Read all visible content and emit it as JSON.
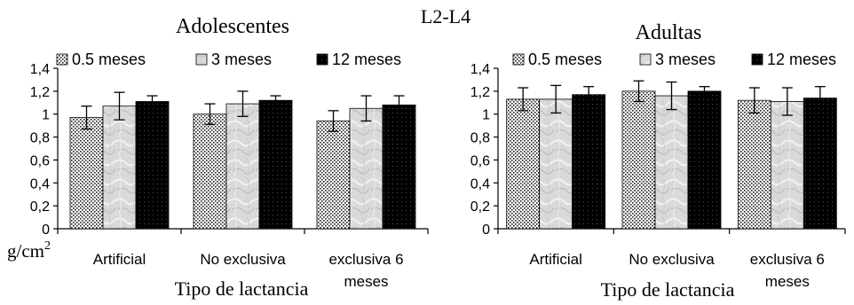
{
  "figure_title": "L2-L4",
  "y_unit_label": "g/cm",
  "y_unit_sup": "2",
  "chart_data": [
    {
      "type": "bar",
      "title": "Adolescentes",
      "xlabel": "Tipo de lactancia",
      "ylabel": "",
      "ylim": [
        0,
        1.4
      ],
      "yticks": [
        "0",
        "0,2",
        "0,4",
        "0,6",
        "0,8",
        "1",
        "1,2",
        "1,4"
      ],
      "categories": [
        [
          "Artificial"
        ],
        [
          "No exclusiva"
        ],
        [
          "exclusiva 6",
          "meses"
        ]
      ],
      "legend_position": "top",
      "series": [
        {
          "name": "0.5 meses",
          "values": [
            0.97,
            1.0,
            0.94
          ],
          "errors": [
            0.1,
            0.09,
            0.09
          ],
          "pattern": "dots"
        },
        {
          "name": "3 meses",
          "values": [
            1.07,
            1.09,
            1.05
          ],
          "errors": [
            0.12,
            0.11,
            0.11
          ],
          "pattern": "marble"
        },
        {
          "name": "12 meses",
          "values": [
            1.11,
            1.12,
            1.08
          ],
          "errors": [
            0.05,
            0.04,
            0.08
          ],
          "pattern": "black"
        }
      ]
    },
    {
      "type": "bar",
      "title": "Adultas",
      "xlabel": "Tipo de lactancia",
      "ylabel": "",
      "ylim": [
        0,
        1.4
      ],
      "yticks": [
        "0",
        "0,2",
        "0,4",
        "0,6",
        "0,8",
        "1",
        "1,2",
        "1,4"
      ],
      "categories": [
        [
          "Artificial"
        ],
        [
          "No exclusiva"
        ],
        [
          "exclusiva 6",
          "meses"
        ]
      ],
      "legend_position": "top",
      "series": [
        {
          "name": "0.5 meses",
          "values": [
            1.13,
            1.2,
            1.12
          ],
          "errors": [
            0.1,
            0.09,
            0.11
          ],
          "pattern": "dots"
        },
        {
          "name": "3 meses",
          "values": [
            1.13,
            1.16,
            1.11
          ],
          "errors": [
            0.12,
            0.12,
            0.12
          ],
          "pattern": "marble"
        },
        {
          "name": "12 meses",
          "values": [
            1.17,
            1.2,
            1.14
          ],
          "errors": [
            0.07,
            0.04,
            0.1
          ],
          "pattern": "black"
        }
      ]
    }
  ]
}
